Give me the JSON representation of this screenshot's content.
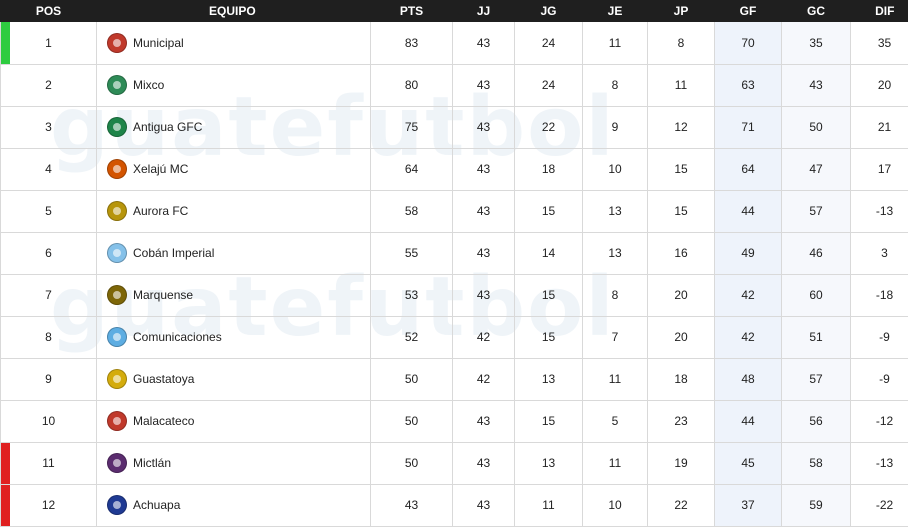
{
  "headers": {
    "pos": "POS",
    "team": "EQUIPO",
    "pts": "PTS",
    "jj": "JJ",
    "jg": "JG",
    "je": "JE",
    "jp": "JP",
    "gf": "GF",
    "gc": "GC",
    "dif": "DIF"
  },
  "watermark": "guatefutbol",
  "colors": {
    "header_bg": "#1f1f1f",
    "top_marker": "#2ecc40",
    "relegation_marker": "#e02020"
  },
  "rows": [
    {
      "pos": "1",
      "team": "Municipal",
      "logo": "municipal-logo-icon",
      "logo_color": "#c0392b",
      "marker": "#2ecc40",
      "pts": "83",
      "jj": "43",
      "jg": "24",
      "je": "11",
      "jp": "8",
      "gf": "70",
      "gc": "35",
      "dif": "35"
    },
    {
      "pos": "2",
      "team": "Mixco",
      "logo": "mixco-logo-icon",
      "logo_color": "#2e8b57",
      "marker": "",
      "pts": "80",
      "jj": "43",
      "jg": "24",
      "je": "8",
      "jp": "11",
      "gf": "63",
      "gc": "43",
      "dif": "20"
    },
    {
      "pos": "3",
      "team": "Antigua GFC",
      "logo": "antigua-gfc-logo-icon",
      "logo_color": "#1e8449",
      "marker": "",
      "pts": "75",
      "jj": "43",
      "jg": "22",
      "je": "9",
      "jp": "12",
      "gf": "71",
      "gc": "50",
      "dif": "21"
    },
    {
      "pos": "4",
      "team": "Xelajú MC",
      "logo": "xelaju-mc-logo-icon",
      "logo_color": "#d35400",
      "marker": "",
      "pts": "64",
      "jj": "43",
      "jg": "18",
      "je": "10",
      "jp": "15",
      "gf": "64",
      "gc": "47",
      "dif": "17"
    },
    {
      "pos": "5",
      "team": "Aurora FC",
      "logo": "aurora-fc-logo-icon",
      "logo_color": "#b7950b",
      "marker": "",
      "pts": "58",
      "jj": "43",
      "jg": "15",
      "je": "13",
      "jp": "15",
      "gf": "44",
      "gc": "57",
      "dif": "-13"
    },
    {
      "pos": "6",
      "team": "Cobán Imperial",
      "logo": "coban-imperial-logo-icon",
      "logo_color": "#85c1e9",
      "marker": "",
      "pts": "55",
      "jj": "43",
      "jg": "14",
      "je": "13",
      "jp": "16",
      "gf": "49",
      "gc": "46",
      "dif": "3"
    },
    {
      "pos": "7",
      "team": "Marquense",
      "logo": "marquense-logo-icon",
      "logo_color": "#7d6608",
      "marker": "",
      "pts": "53",
      "jj": "43",
      "jg": "15",
      "je": "8",
      "jp": "20",
      "gf": "42",
      "gc": "60",
      "dif": "-18"
    },
    {
      "pos": "8",
      "team": "Comunicaciones",
      "logo": "comunicaciones-logo-icon",
      "logo_color": "#5dade2",
      "marker": "",
      "pts": "52",
      "jj": "42",
      "jg": "15",
      "je": "7",
      "jp": "20",
      "gf": "42",
      "gc": "51",
      "dif": "-9"
    },
    {
      "pos": "9",
      "team": "Guastatoya",
      "logo": "guastatoya-logo-icon",
      "logo_color": "#d4ac0d",
      "marker": "",
      "pts": "50",
      "jj": "42",
      "jg": "13",
      "je": "11",
      "jp": "18",
      "gf": "48",
      "gc": "57",
      "dif": "-9"
    },
    {
      "pos": "10",
      "team": "Malacateco",
      "logo": "malacateco-logo-icon",
      "logo_color": "#c0392b",
      "marker": "",
      "pts": "50",
      "jj": "43",
      "jg": "15",
      "je": "5",
      "jp": "23",
      "gf": "44",
      "gc": "56",
      "dif": "-12"
    },
    {
      "pos": "11",
      "team": "Mictlán",
      "logo": "mictlan-logo-icon",
      "logo_color": "#5b2c6f",
      "marker": "#e02020",
      "pts": "50",
      "jj": "43",
      "jg": "13",
      "je": "11",
      "jp": "19",
      "gf": "45",
      "gc": "58",
      "dif": "-13"
    },
    {
      "pos": "12",
      "team": "Achuapa",
      "logo": "achuapa-logo-icon",
      "logo_color": "#1f3a93",
      "marker": "#e02020",
      "pts": "43",
      "jj": "43",
      "jg": "11",
      "je": "10",
      "jp": "22",
      "gf": "37",
      "gc": "59",
      "dif": "-22"
    }
  ]
}
